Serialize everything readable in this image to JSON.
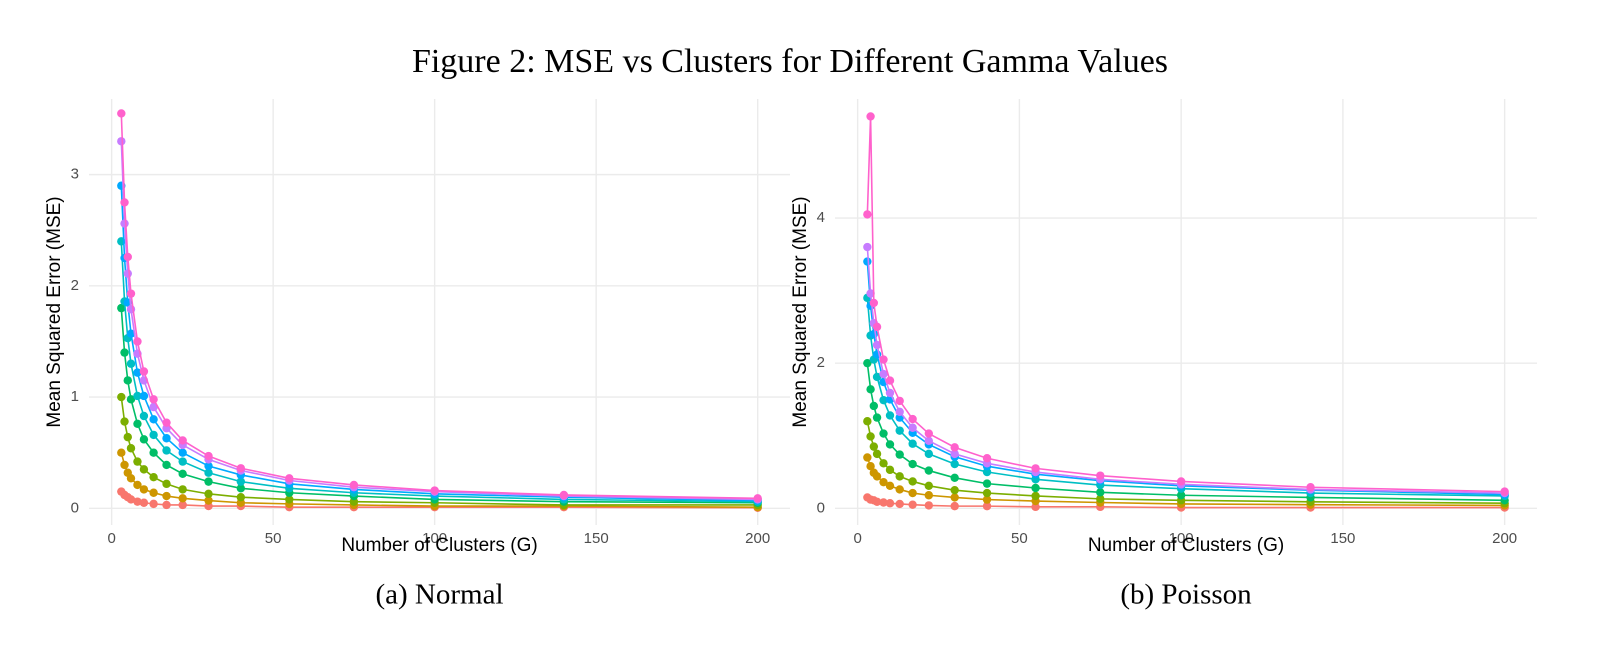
{
  "title": "Figure 2: MSE vs Clusters for Different Gamma Values",
  "chart_data": [
    {
      "type": "line",
      "caption": "(a) Normal",
      "x_label": "Number of Clusters (G)",
      "y_label": "Mean Squared Error (MSE)",
      "x": [
        3,
        4,
        5,
        6,
        8,
        10,
        13,
        17,
        22,
        30,
        40,
        55,
        75,
        100,
        140,
        200
      ],
      "xlim": [
        -7,
        210
      ],
      "xticks": [
        0,
        50,
        100,
        150,
        200
      ],
      "ylim": [
        -0.15,
        3.68
      ],
      "yticks": [
        0,
        1,
        2,
        3
      ],
      "grid": true,
      "series": [
        {
          "color": "#F8766D",
          "values": [
            0.15,
            0.12,
            0.1,
            0.08,
            0.06,
            0.05,
            0.04,
            0.03,
            0.03,
            0.02,
            0.02,
            0.01,
            0.01,
            0.01,
            0.01,
            0.005
          ]
        },
        {
          "color": "#CD9600",
          "values": [
            0.5,
            0.39,
            0.32,
            0.27,
            0.21,
            0.17,
            0.14,
            0.11,
            0.09,
            0.07,
            0.05,
            0.04,
            0.03,
            0.02,
            0.02,
            0.01
          ]
        },
        {
          "color": "#7CAE00",
          "values": [
            1,
            0.78,
            0.64,
            0.54,
            0.42,
            0.35,
            0.28,
            0.22,
            0.17,
            0.13,
            0.1,
            0.08,
            0.06,
            0.05,
            0.03,
            0.03
          ]
        },
        {
          "color": "#00BE67",
          "values": [
            1.8,
            1.4,
            1.15,
            0.98,
            0.76,
            0.62,
            0.5,
            0.39,
            0.31,
            0.24,
            0.18,
            0.14,
            0.11,
            0.08,
            0.06,
            0.05
          ]
        },
        {
          "color": "#00BFC4",
          "values": [
            2.4,
            1.86,
            1.53,
            1.3,
            1.01,
            0.83,
            0.66,
            0.52,
            0.42,
            0.32,
            0.24,
            0.18,
            0.14,
            0.11,
            0.08,
            0.06
          ]
        },
        {
          "color": "#00A9FF",
          "values": [
            2.9,
            2.25,
            1.85,
            1.57,
            1.22,
            1.01,
            0.8,
            0.63,
            0.5,
            0.38,
            0.3,
            0.22,
            0.17,
            0.13,
            0.1,
            0.07
          ]
        },
        {
          "color": "#C77CFF",
          "values": [
            3.3,
            2.56,
            2.11,
            1.79,
            1.39,
            1.15,
            0.91,
            0.72,
            0.57,
            0.44,
            0.34,
            0.25,
            0.19,
            0.15,
            0.11,
            0.08
          ]
        },
        {
          "color": "#FF61CC",
          "values": [
            3.55,
            2.75,
            2.26,
            1.93,
            1.5,
            1.23,
            0.98,
            0.77,
            0.61,
            0.47,
            0.36,
            0.27,
            0.21,
            0.16,
            0.12,
            0.09
          ]
        }
      ]
    },
    {
      "type": "line",
      "caption": "(b) Poisson",
      "x_label": "Number of Clusters (G)",
      "y_label": "Mean Squared Error (MSE)",
      "x": [
        3,
        4,
        5,
        6,
        8,
        10,
        13,
        17,
        22,
        30,
        40,
        55,
        75,
        100,
        140,
        200
      ],
      "xlim": [
        -7,
        210
      ],
      "xticks": [
        0,
        50,
        100,
        150,
        200
      ],
      "ylim": [
        -0.23,
        5.64
      ],
      "yticks": [
        0,
        2,
        4
      ],
      "grid": true,
      "series": [
        {
          "color": "#F8766D",
          "values": [
            0.15,
            0.12,
            0.11,
            0.09,
            0.08,
            0.07,
            0.06,
            0.05,
            0.04,
            0.03,
            0.03,
            0.02,
            0.02,
            0.01,
            0.01,
            0.01
          ]
        },
        {
          "color": "#CD9600",
          "values": [
            0.7,
            0.58,
            0.49,
            0.44,
            0.36,
            0.31,
            0.26,
            0.21,
            0.18,
            0.15,
            0.12,
            0.1,
            0.08,
            0.06,
            0.05,
            0.04
          ]
        },
        {
          "color": "#7CAE00",
          "values": [
            1.2,
            0.99,
            0.85,
            0.75,
            0.62,
            0.53,
            0.44,
            0.37,
            0.31,
            0.25,
            0.21,
            0.17,
            0.13,
            0.11,
            0.09,
            0.07
          ]
        },
        {
          "color": "#00BE67",
          "values": [
            2,
            1.64,
            1.41,
            1.25,
            1.03,
            0.88,
            0.74,
            0.61,
            0.52,
            0.42,
            0.34,
            0.28,
            0.22,
            0.18,
            0.15,
            0.11
          ]
        },
        {
          "color": "#00BFC4",
          "values": [
            2.9,
            2.38,
            2.05,
            1.81,
            1.49,
            1.28,
            1.07,
            0.89,
            0.75,
            0.61,
            0.5,
            0.4,
            0.32,
            0.27,
            0.21,
            0.17
          ]
        },
        {
          "color": "#00A9FF",
          "values": [
            3.4,
            2.79,
            2.4,
            2.12,
            1.74,
            1.5,
            1.25,
            1.04,
            0.88,
            0.71,
            0.58,
            0.47,
            0.38,
            0.31,
            0.25,
            0.19
          ]
        },
        {
          "color": "#C77CFF",
          "values": [
            3.6,
            2.96,
            2.55,
            2.25,
            1.85,
            1.59,
            1.33,
            1.11,
            0.93,
            0.75,
            0.62,
            0.5,
            0.4,
            0.33,
            0.26,
            0.21
          ]
        },
        {
          "color": "#FF61CC",
          "values": [
            4.05,
            5.4,
            2.83,
            2.5,
            2.05,
            1.76,
            1.48,
            1.23,
            1.03,
            0.84,
            0.69,
            0.55,
            0.45,
            0.37,
            0.29,
            0.23
          ]
        }
      ]
    }
  ]
}
